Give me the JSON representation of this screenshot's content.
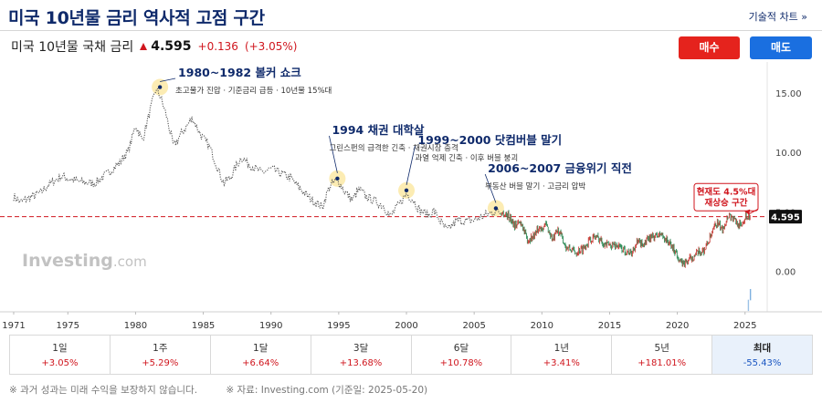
{
  "header": {
    "title": "미국 10년물 금리 역사적 고점 구간",
    "tech_chart_link": "기술적 차트 »"
  },
  "ticker": {
    "name": "미국 10년물 국채 금리",
    "price": "4.595",
    "change": "+0.136",
    "change_pct": "(+3.05%)"
  },
  "actions": {
    "buy_label": "매수",
    "sell_label": "매도"
  },
  "watermark": {
    "brand": "Investing",
    "suffix": ".com"
  },
  "chart_data": {
    "type": "line",
    "title": "",
    "xlabel": "",
    "ylabel": "",
    "xlim": [
      1970.8,
      2026.5
    ],
    "ylim": [
      -2.5,
      17.0
    ],
    "y_ticks": [
      0,
      5,
      10,
      15
    ],
    "y_tick_labels": [
      "0.00",
      "5.00",
      "10.00",
      "15.00"
    ],
    "x_ticks": [
      1971,
      1975,
      1980,
      1985,
      1990,
      1995,
      2000,
      2005,
      2010,
      2015,
      2020,
      2025
    ],
    "current_value": 4.595,
    "current_value_label": "4.595",
    "reference_line": 4.595,
    "series": [
      {
        "name": "",
        "style": "dotted-gray",
        "x": [
          1971,
          1971.5,
          1972,
          1973,
          1973.5,
          1974,
          1974.5,
          1975,
          1976,
          1977,
          1978,
          1978.8,
          1979.5,
          1980.0,
          1980.5,
          1981.0,
          1981.5,
          1981.8,
          1982.3,
          1982.8,
          1983.5,
          1984.2,
          1984.8,
          1985.5,
          1986.5,
          1987,
          1987.8,
          1988.5,
          1989.3,
          1990,
          1990.8,
          1991.5,
          1992,
          1993,
          1993.8,
          1994.3,
          1994.9,
          1995.5,
          1996,
          1996.5,
          1997,
          1997.5,
          1998.3,
          1998.8,
          1999.5,
          2000.0,
          2000.5,
          2001,
          2001.7,
          2002,
          2002.5,
          2003.0,
          2003.4,
          2003.8,
          2004.5,
          2005,
          2006,
          2006.6,
          2007.0
        ],
        "y": [
          6.3,
          5.8,
          6.1,
          6.6,
          7.2,
          7.6,
          8.0,
          7.8,
          7.5,
          7.4,
          8.3,
          9.1,
          10.2,
          12.3,
          11.0,
          13.2,
          15.3,
          14.8,
          13.0,
          10.5,
          11.8,
          12.9,
          11.5,
          10.4,
          7.4,
          7.9,
          9.6,
          8.9,
          8.3,
          8.6,
          8.2,
          7.8,
          7.1,
          6.0,
          5.4,
          7.1,
          7.7,
          6.6,
          6.0,
          6.9,
          6.3,
          6.0,
          5.5,
          4.6,
          5.7,
          6.5,
          6.0,
          5.1,
          4.7,
          5.1,
          4.2,
          3.4,
          3.9,
          4.3,
          4.2,
          4.3,
          4.8,
          5.1,
          4.9
        ]
      },
      {
        "name": "",
        "style": "candles",
        "x": [
          2007.0,
          2007.5,
          2008.0,
          2008.5,
          2008.9,
          2009.3,
          2009.8,
          2010.3,
          2010.8,
          2011.2,
          2011.8,
          2012.5,
          2013.0,
          2013.6,
          2014.0,
          2014.8,
          2015.5,
          2016.0,
          2016.6,
          2017.0,
          2017.5,
          2018.0,
          2018.8,
          2019.3,
          2019.9,
          2020.3,
          2020.6,
          2021.0,
          2021.5,
          2022.0,
          2022.5,
          2022.9,
          2023.3,
          2023.8,
          2024.2,
          2024.7,
          2025.0,
          2025.4
        ],
        "y": [
          4.9,
          4.7,
          3.9,
          4.1,
          2.6,
          2.9,
          3.6,
          3.9,
          2.6,
          3.5,
          2.0,
          1.6,
          1.9,
          2.7,
          2.9,
          2.2,
          2.2,
          1.8,
          1.5,
          2.4,
          2.3,
          2.8,
          3.1,
          2.5,
          1.6,
          0.6,
          0.7,
          1.1,
          1.5,
          1.8,
          3.0,
          4.1,
          3.5,
          4.8,
          4.3,
          3.8,
          4.6,
          4.6
        ]
      }
    ],
    "annotations": [
      {
        "x": 1981.8,
        "y": 15.5,
        "title": "1980~1982 볼커 쇼크",
        "subtitle": "초고물가 진압 · 기준금리 급등 · 10년물 15%대"
      },
      {
        "x": 1994.9,
        "y": 7.8,
        "title": "1994 채권 대학살",
        "subtitle": "그린스펀의 급격한 긴축 · 채권시장 충격"
      },
      {
        "x": 2000.0,
        "y": 6.8,
        "title": "1999~2000 닷컴버블 말기",
        "subtitle": "과열 억제 긴축 · 이후 버블 붕괴"
      },
      {
        "x": 2006.6,
        "y": 5.3,
        "title": "2006~2007 금융위기 직전",
        "subtitle": "부동산 버블 말기 · 고금리 압박"
      }
    ],
    "callout": {
      "lines": [
        "현재도 4.5%대",
        "재상승 구간"
      ]
    }
  },
  "periods": [
    {
      "label": "1일",
      "value": "+3.05%"
    },
    {
      "label": "1주",
      "value": "+5.29%"
    },
    {
      "label": "1달",
      "value": "+6.64%"
    },
    {
      "label": "3달",
      "value": "+13.68%"
    },
    {
      "label": "6달",
      "value": "+10.78%"
    },
    {
      "label": "1년",
      "value": "+3.41%"
    },
    {
      "label": "5년",
      "value": "+181.01%"
    },
    {
      "label": "최대",
      "value": "-55.43%",
      "active": true
    }
  ],
  "footer": {
    "disclaimer": "※ 과거 성과는 미래 수익을 보장하지 않습니다.",
    "source": "※ 자료: Investing.com (기준일: 2025-05-20)"
  }
}
